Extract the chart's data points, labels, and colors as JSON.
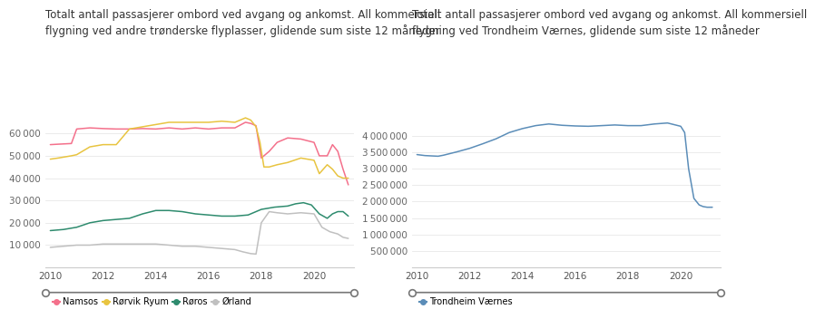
{
  "title_left": "Totalt antall passasjerer ombord ved avgang og ankomst. All kommersiell\nflygning ved andre trønderske flyplasser, glidende sum siste 12 måneder",
  "title_right": "Totalt antall passasjerer ombord ved avgang og ankomst. All kommersiell\nflygning ved Trondheim Værnes, glidende sum siste 12 måneder",
  "left_series": {
    "Namsos": {
      "color": "#f4708b",
      "x": [
        2010,
        2010.3,
        2010.8,
        2011,
        2011.5,
        2012,
        2012.5,
        2013,
        2013.5,
        2014,
        2014.5,
        2015,
        2015.5,
        2016,
        2016.5,
        2017,
        2017.4,
        2017.6,
        2017.8,
        2018.0,
        2018.3,
        2018.6,
        2019,
        2019.5,
        2020.0,
        2020.2,
        2020.5,
        2020.7,
        2020.9,
        2021.1,
        2021.3
      ],
      "y": [
        55000,
        55200,
        55500,
        62000,
        62500,
        62200,
        62000,
        62000,
        62200,
        62000,
        62500,
        62000,
        62500,
        62000,
        62500,
        62500,
        65000,
        64500,
        63500,
        49000,
        52000,
        56000,
        58000,
        57500,
        56000,
        50000,
        50000,
        55000,
        52000,
        44000,
        37000
      ]
    },
    "Rørvik Ryum": {
      "color": "#e8c440",
      "x": [
        2010,
        2010.3,
        2010.8,
        2011,
        2011.5,
        2012,
        2012.5,
        2013,
        2013.5,
        2014,
        2014.5,
        2015,
        2015.5,
        2016,
        2016.5,
        2017,
        2017.4,
        2017.6,
        2017.8,
        2017.95,
        2018.1,
        2018.3,
        2018.6,
        2019,
        2019.5,
        2020.0,
        2020.2,
        2020.5,
        2020.7,
        2020.9,
        2021.1,
        2021.3
      ],
      "y": [
        48500,
        49000,
        50000,
        50500,
        54000,
        55000,
        55000,
        62000,
        63000,
        64000,
        65000,
        65000,
        65000,
        65000,
        65500,
        65000,
        67000,
        66000,
        63000,
        56000,
        45000,
        45000,
        46000,
        47000,
        49000,
        48000,
        42000,
        46000,
        44000,
        41000,
        40000,
        40000
      ]
    },
    "Røros": {
      "color": "#2e8b6e",
      "x": [
        2010,
        2010.5,
        2011,
        2011.5,
        2012,
        2012.5,
        2013,
        2013.5,
        2014,
        2014.5,
        2015,
        2015.5,
        2016,
        2016.5,
        2017,
        2017.5,
        2018,
        2018.5,
        2019,
        2019.3,
        2019.6,
        2019.9,
        2020.2,
        2020.5,
        2020.7,
        2020.9,
        2021.1,
        2021.3
      ],
      "y": [
        16500,
        17000,
        18000,
        20000,
        21000,
        21500,
        22000,
        24000,
        25500,
        25500,
        25000,
        24000,
        23500,
        23000,
        23000,
        23500,
        26000,
        27000,
        27500,
        28500,
        29000,
        28000,
        24000,
        22000,
        24000,
        25000,
        25000,
        23000
      ]
    },
    "Ørland": {
      "color": "#c0c0c0",
      "x": [
        2010,
        2010.5,
        2011,
        2011.5,
        2012,
        2012.5,
        2013,
        2013.5,
        2014,
        2014.5,
        2015,
        2015.5,
        2016,
        2016.5,
        2017,
        2017.3,
        2017.6,
        2017.8,
        2018.0,
        2018.3,
        2018.6,
        2019,
        2019.5,
        2020.0,
        2020.3,
        2020.6,
        2020.9,
        2021.1,
        2021.3
      ],
      "y": [
        9000,
        9500,
        10000,
        10000,
        10500,
        10500,
        10500,
        10500,
        10500,
        10000,
        9500,
        9500,
        9000,
        8500,
        8000,
        7000,
        6200,
        6000,
        20000,
        25000,
        24500,
        24000,
        24500,
        24000,
        18000,
        16000,
        15000,
        13500,
        13000
      ]
    }
  },
  "right_series": {
    "Trondheim Værnes": {
      "color": "#5b8db8",
      "x": [
        2010,
        2010.3,
        2010.8,
        2011,
        2011.5,
        2012,
        2012.5,
        2013,
        2013.5,
        2014,
        2014.5,
        2015,
        2015.5,
        2016,
        2016.5,
        2017,
        2017.5,
        2018,
        2018.5,
        2019,
        2019.5,
        2020.0,
        2020.15,
        2020.3,
        2020.5,
        2020.7,
        2020.85,
        2021.0,
        2021.2
      ],
      "y": [
        3430000,
        3400000,
        3380000,
        3410000,
        3510000,
        3620000,
        3760000,
        3910000,
        4100000,
        4220000,
        4310000,
        4360000,
        4320000,
        4300000,
        4290000,
        4310000,
        4330000,
        4310000,
        4310000,
        4360000,
        4390000,
        4290000,
        4100000,
        3000000,
        2100000,
        1900000,
        1850000,
        1830000,
        1830000
      ]
    }
  },
  "left_ylim": [
    0,
    70000
  ],
  "left_yticks": [
    0,
    10000,
    20000,
    30000,
    40000,
    50000,
    60000
  ],
  "right_ylim": [
    0,
    4750000
  ],
  "right_yticks": [
    0,
    500000,
    1000000,
    1500000,
    2000000,
    2500000,
    3000000,
    3500000,
    4000000
  ],
  "xlim": [
    2009.8,
    2021.5
  ],
  "xticks": [
    2010,
    2012,
    2014,
    2016,
    2018,
    2020
  ],
  "background_color": "#ffffff",
  "grid_color": "#e8e8e8",
  "title_fontsize": 8.5,
  "tick_fontsize": 7.5,
  "legend_fontsize": 7,
  "line_width": 1.1,
  "slider_color": "#777777"
}
